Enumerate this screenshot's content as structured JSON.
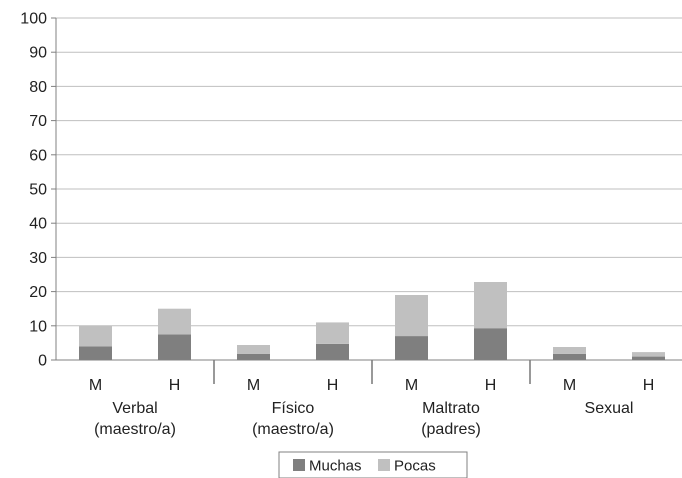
{
  "chart_data": {
    "type": "bar",
    "stacked": true,
    "ylim": [
      0,
      100
    ],
    "yticks": [
      0,
      10,
      20,
      30,
      40,
      50,
      60,
      70,
      80,
      90,
      100
    ],
    "groups": [
      {
        "label_lines": [
          "Verbal",
          "(maestro/a)"
        ],
        "subcategories": [
          "M",
          "H"
        ]
      },
      {
        "label_lines": [
          "Físico",
          "(maestro/a)"
        ],
        "subcategories": [
          "M",
          "H"
        ]
      },
      {
        "label_lines": [
          "Maltrato",
          "(padres)"
        ],
        "subcategories": [
          "M",
          "H"
        ]
      },
      {
        "label_lines": [
          "Sexual"
        ],
        "subcategories": [
          "M",
          "H"
        ]
      }
    ],
    "series": [
      {
        "name": "Muchas",
        "color": "#7f7f7f",
        "values": [
          4.0,
          7.5,
          1.8,
          4.7,
          7.0,
          9.3,
          1.8,
          1.0
        ]
      },
      {
        "name": "Pocas",
        "color": "#c0c0c0",
        "values": [
          6.0,
          7.5,
          2.6,
          6.3,
          12.0,
          13.5,
          2.0,
          1.3
        ]
      }
    ],
    "grid": true,
    "legend_position": "bottom"
  }
}
